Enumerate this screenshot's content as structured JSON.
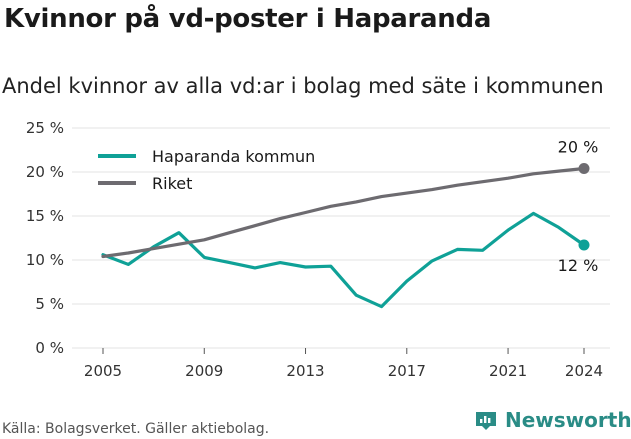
{
  "title": "Kvinnor på vd-poster i Haparanda",
  "subtitle": "Andel kvinnor av alla vd:ar i bolag med säte i kommunen",
  "footer": "Källa: Bolagsverket. Gäller aktiebolag.",
  "brand": "Newsworthy",
  "colors": {
    "haparanda": "#0fa197",
    "riket": "#6d6b70",
    "grid": "#e3e3e3",
    "brand": "#2a8c86"
  },
  "chart_data": {
    "type": "line",
    "x": [
      2005,
      2006,
      2007,
      2008,
      2009,
      2010,
      2011,
      2012,
      2013,
      2014,
      2015,
      2016,
      2017,
      2018,
      2019,
      2020,
      2021,
      2022,
      2023,
      2024
    ],
    "series": [
      {
        "name": "Haparanda kommun",
        "values": [
          10.6,
          9.5,
          11.5,
          13.1,
          10.3,
          9.7,
          9.1,
          9.7,
          9.2,
          9.3,
          6.0,
          4.7,
          7.6,
          9.9,
          11.2,
          11.1,
          13.4,
          15.3,
          13.7,
          11.7
        ]
      },
      {
        "name": "Riket",
        "values": [
          10.4,
          10.8,
          11.3,
          11.8,
          12.3,
          13.1,
          13.9,
          14.7,
          15.4,
          16.1,
          16.6,
          17.2,
          17.6,
          18.0,
          18.5,
          18.9,
          19.3,
          19.8,
          20.1,
          20.4
        ]
      }
    ],
    "end_labels": [
      "12 %",
      "20 %"
    ],
    "x_ticks": [
      2005,
      2009,
      2013,
      2017,
      2021,
      2024
    ],
    "x_tick_labels": [
      "2005",
      "2009",
      "2013",
      "2017",
      "2021",
      "2024"
    ],
    "y_ticks": [
      0,
      5,
      10,
      15,
      20,
      25
    ],
    "y_tick_labels": [
      "0 %",
      "5 %",
      "10 %",
      "15 %",
      "20 %",
      "25 %"
    ],
    "xlim": [
      2005,
      2024
    ],
    "ylim": [
      0,
      25
    ],
    "grid": true,
    "legend": "top-left"
  }
}
